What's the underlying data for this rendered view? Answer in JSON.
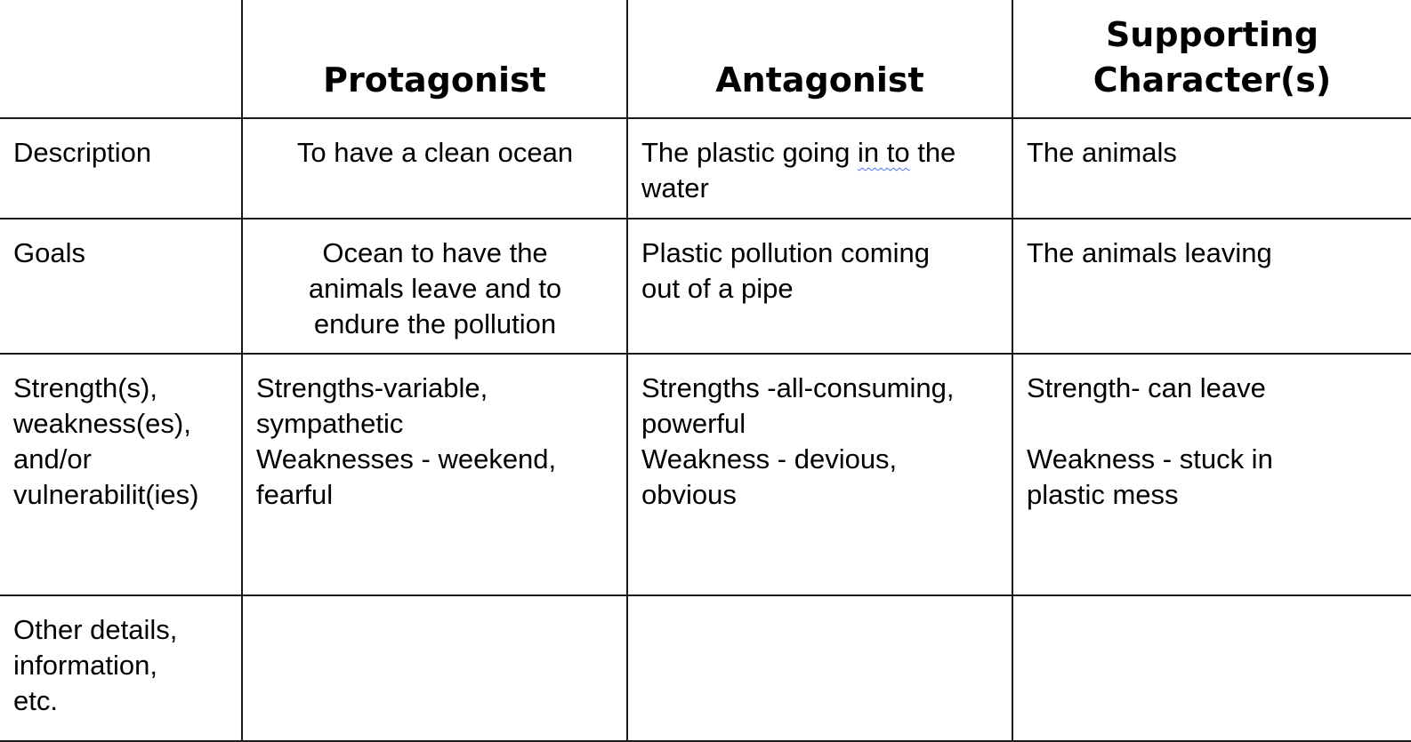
{
  "headers": {
    "corner": "",
    "protagonist": "Protagonist",
    "antagonist": "Antagonist",
    "supporting": "Supporting\nCharacter(s)"
  },
  "rows": [
    {
      "label": "Description",
      "protagonist": "To have a clean ocean",
      "antagonist_before": "The plastic going ",
      "antagonist_flagged": "in to",
      "antagonist_after": " the water",
      "supporting": "The animals"
    },
    {
      "label": "Goals",
      "protagonist": "Ocean to have the\nanimals leave and to\nendure the pollution",
      "antagonist": "Plastic pollution coming\nout of a pipe",
      "supporting": "The animals leaving"
    },
    {
      "label": "Strength(s),\nweakness(es),\nand/or\nvulnerabilit(ies)",
      "protagonist": "Strengths-variable,\nsympathetic\nWeaknesses - weekend,\nfearful",
      "antagonist": "Strengths -all-consuming,\npowerful\nWeakness - devious,\nobvious",
      "supporting": "Strength- can leave\n\nWeakness - stuck in\nplastic mess"
    },
    {
      "label": "Other details,\ninformation,\netc.",
      "protagonist": "",
      "antagonist": "",
      "supporting": ""
    }
  ]
}
